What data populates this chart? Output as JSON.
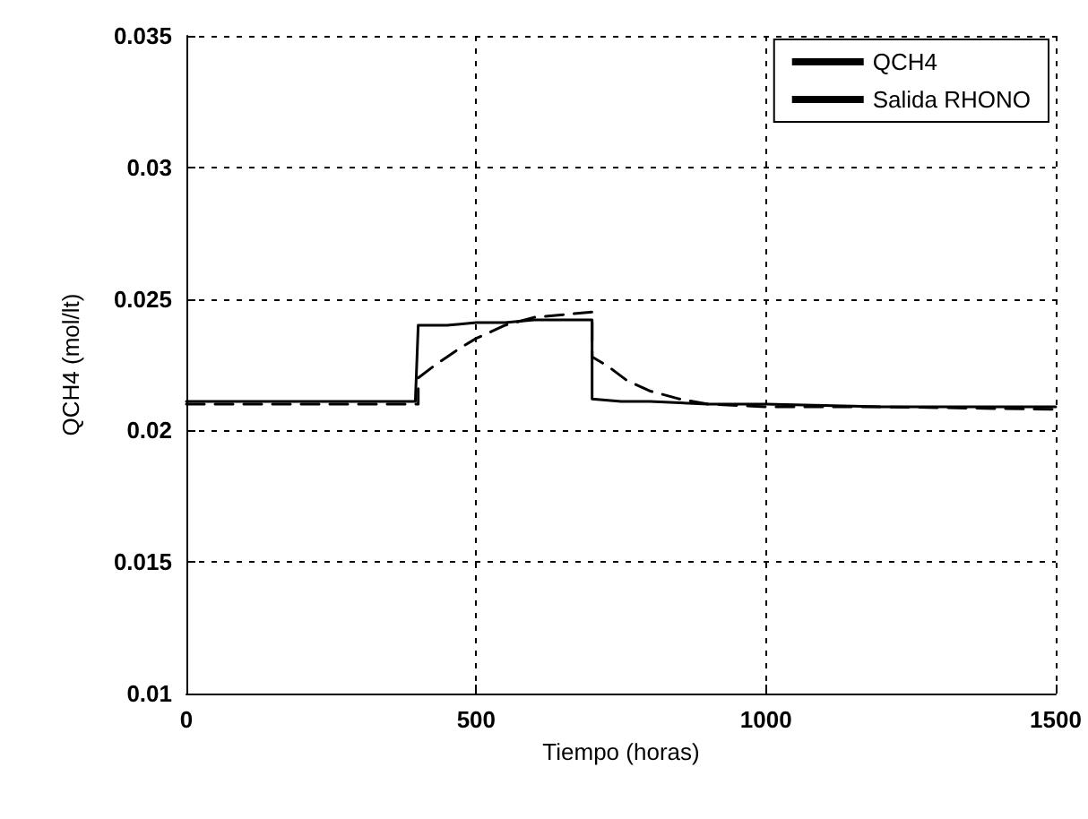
{
  "chart_data": {
    "type": "line",
    "xlabel": "Tiempo (horas)",
    "ylabel": "QCH4 (mol/lt)",
    "xlim": [
      0,
      1500
    ],
    "xticks": [
      0,
      500,
      1000,
      1500
    ],
    "ylim": [
      0.01,
      0.035
    ],
    "yticks": [
      0.01,
      0.015,
      0.02,
      0.025,
      0.03,
      0.035
    ],
    "grid": true,
    "legend": "top right",
    "marker": "none",
    "series": [
      {
        "name": "QCH4",
        "color": "#000000",
        "line_style": "solid",
        "x": [
          0,
          395,
          400,
          450,
          500,
          550,
          600,
          650,
          700,
          700,
          750,
          800,
          900,
          1000,
          1200,
          1500
        ],
        "values": [
          0.0211,
          0.0211,
          0.024,
          0.024,
          0.0241,
          0.0241,
          0.0242,
          0.0242,
          0.0242,
          0.0212,
          0.0211,
          0.0211,
          0.021,
          0.021,
          0.0209,
          0.0209
        ]
      },
      {
        "name": "Salida RHONO",
        "color": "#000000",
        "line_style": "dashed",
        "x": [
          0,
          400,
          400,
          430,
          470,
          500,
          550,
          600,
          650,
          700,
          700,
          730,
          760,
          800,
          850,
          900,
          1000,
          1200,
          1500
        ],
        "values": [
          0.021,
          0.021,
          0.022,
          0.0225,
          0.0231,
          0.0235,
          0.024,
          0.0243,
          0.0244,
          0.0245,
          0.0228,
          0.0224,
          0.0219,
          0.0215,
          0.0212,
          0.021,
          0.0209,
          0.0209,
          0.0208
        ]
      }
    ]
  }
}
